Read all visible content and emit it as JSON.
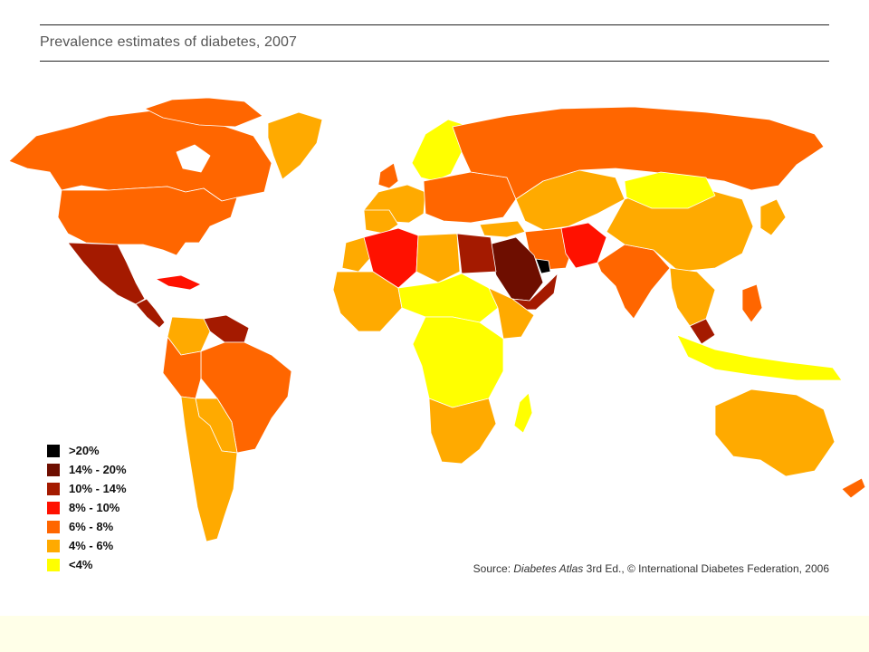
{
  "title": "Prevalence estimates of diabetes, 2007",
  "legend": [
    {
      "label": ">20%",
      "color": "#000000"
    },
    {
      "label": "14% - 20%",
      "color": "#6E0E00"
    },
    {
      "label": "10% - 14%",
      "color": "#A41A00"
    },
    {
      "label": "8% - 10%",
      "color": "#FF1100"
    },
    {
      "label": "6% - 8%",
      "color": "#FF6600"
    },
    {
      "label": "4% - 6%",
      "color": "#FFAA00"
    },
    {
      "label": "<4%",
      "color": "#FFFF00"
    }
  ],
  "source": {
    "prefix": "Source: ",
    "atlas": "Diabetes Atlas",
    "suffix": " 3rd Ed., © International Diabetes Federation, 2006"
  },
  "colors": {
    "slide_background": "#FFFFE8",
    "panel_background": "#FFFFFF",
    "border": "#FFFFFF"
  }
}
